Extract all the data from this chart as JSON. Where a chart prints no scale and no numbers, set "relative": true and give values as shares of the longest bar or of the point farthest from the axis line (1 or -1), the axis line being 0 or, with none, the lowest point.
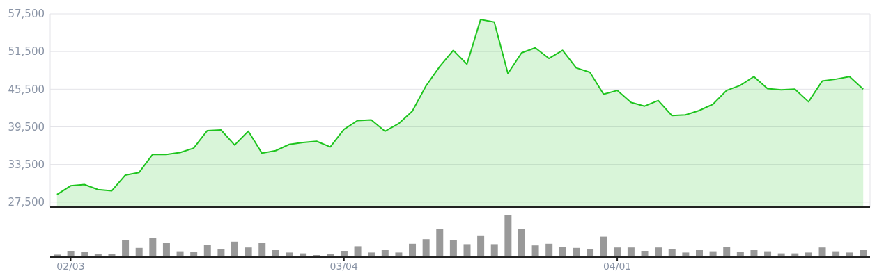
{
  "chart_data": [
    {
      "type": "area",
      "color": "#1ec41e",
      "values": [
        28700,
        30100,
        30300,
        29500,
        29300,
        31800,
        32200,
        35100,
        35100,
        35400,
        36100,
        38900,
        39000,
        36600,
        38800,
        35300,
        35700,
        36700,
        37000,
        37200,
        36300,
        39100,
        40500,
        40600,
        38800,
        40000,
        42000,
        46000,
        49100,
        51700,
        49500,
        56600,
        56200,
        48000,
        51300,
        52100,
        50400,
        51700,
        48900,
        48200,
        44700,
        45300,
        43400,
        42800,
        43700,
        41300,
        41400,
        42100,
        43100,
        45300,
        46100,
        47500,
        45600,
        45400,
        45500,
        43500,
        46800,
        47100,
        47500,
        45500
      ],
      "ylim": [
        26700,
        57500
      ],
      "yticks": [
        {
          "value": 27500,
          "label": "27,500"
        },
        {
          "value": 33500,
          "label": "33,500"
        },
        {
          "value": 39500,
          "label": "39,500"
        },
        {
          "value": 45500,
          "label": "45,500"
        },
        {
          "value": 51500,
          "label": "51,500"
        },
        {
          "value": 57500,
          "label": "57,500"
        }
      ],
      "grid": true,
      "tick_labels": "y"
    },
    {
      "type": "bar",
      "relative": true,
      "categories": [
        null,
        "02/03",
        null,
        null,
        null,
        null,
        null,
        null,
        null,
        null,
        null,
        null,
        null,
        null,
        null,
        null,
        null,
        null,
        null,
        null,
        null,
        "03/04",
        null,
        null,
        null,
        null,
        null,
        null,
        null,
        null,
        null,
        null,
        null,
        null,
        null,
        null,
        null,
        null,
        null,
        null,
        null,
        "04/01",
        null,
        null,
        null,
        null,
        null,
        null,
        null,
        null,
        null,
        null,
        null,
        null,
        null,
        null,
        null,
        null,
        null,
        null
      ],
      "color": "#999999",
      "values": [
        0.06,
        0.15,
        0.12,
        0.08,
        0.08,
        0.4,
        0.22,
        0.45,
        0.34,
        0.14,
        0.12,
        0.29,
        0.2,
        0.37,
        0.23,
        0.34,
        0.18,
        0.11,
        0.09,
        0.05,
        0.08,
        0.15,
        0.26,
        0.11,
        0.18,
        0.11,
        0.32,
        0.43,
        0.68,
        0.4,
        0.31,
        0.52,
        0.31,
        1,
        0.68,
        0.28,
        0.32,
        0.25,
        0.22,
        0.2,
        0.49,
        0.23,
        0.23,
        0.15,
        0.23,
        0.2,
        0.11,
        0.17,
        0.14,
        0.25,
        0.12,
        0.18,
        0.14,
        0.09,
        0.09,
        0.11,
        0.23,
        0.14,
        0.11,
        0.17
      ],
      "tick_labels": "x"
    }
  ]
}
